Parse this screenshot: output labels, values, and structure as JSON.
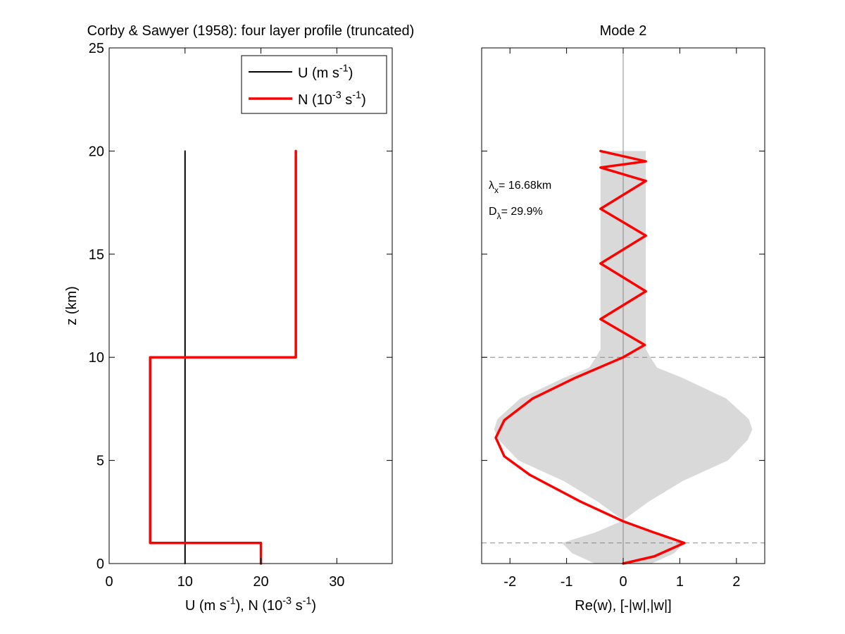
{
  "chart_data": [
    {
      "type": "line",
      "title": "Corby & Sawyer (1958): four layer profile (truncated)",
      "xlabel": "U (m s⁻¹), N (10⁻³ s⁻¹)",
      "ylabel": "z (km)",
      "xlim": [
        0,
        37.3
      ],
      "ylim": [
        0,
        25
      ],
      "xticks": [
        0,
        10,
        20,
        30
      ],
      "yticks": [
        0,
        5,
        10,
        15,
        20,
        25
      ],
      "grid": false,
      "legend_position": "top-right",
      "legend": [
        "U (m s⁻¹)",
        "N (10⁻³ s⁻¹)"
      ],
      "series": [
        {
          "name": "U (m s⁻¹)",
          "color": "#000000",
          "x": [
            10,
            10
          ],
          "y": [
            0,
            20
          ]
        },
        {
          "name": "N (10⁻³ s⁻¹)",
          "color": "#ff0000",
          "x": [
            20,
            20,
            5.4,
            5.4,
            24.6,
            24.6
          ],
          "y": [
            0,
            1,
            1,
            10,
            10,
            20
          ]
        }
      ]
    },
    {
      "type": "line",
      "title": "Mode 2",
      "xlabel": "Re(w), [-|w|,|w|]",
      "ylabel": "",
      "xlim": [
        -2.5,
        2.5
      ],
      "ylim": [
        0,
        25
      ],
      "xticks": [
        -2,
        -1,
        0,
        1,
        2
      ],
      "yticks": [
        0,
        5,
        10,
        15,
        20,
        25
      ],
      "show_yticklabels": false,
      "grid": false,
      "annotations": [
        {
          "base": "λ",
          "sub": "x",
          "text": "= 16.68km"
        },
        {
          "base": "D",
          "sub": "λ",
          "text": "= 29.9%"
        }
      ],
      "reference_lines": {
        "vertical_x": 0,
        "horizontal_dashed_y": [
          1,
          10
        ]
      },
      "envelope": {
        "color": "#d9d9d9",
        "z": [
          0,
          0.5,
          1,
          1.5,
          2,
          2.1,
          3,
          4,
          5,
          6,
          6.5,
          7,
          8,
          9,
          9.5,
          10,
          10.4,
          12,
          15,
          18,
          20
        ],
        "abs_w": [
          0.5,
          0.9,
          1.08,
          0.5,
          0.08,
          0.0,
          0.45,
          1.05,
          1.85,
          2.2,
          2.28,
          2.22,
          1.82,
          1.05,
          0.6,
          0.48,
          0.4,
          0.4,
          0.4,
          0.4,
          0.4
        ]
      },
      "series": [
        {
          "name": "Re(w)",
          "color": "#ff0000",
          "x": [
            0.0,
            0.55,
            1.08,
            0.5,
            0.0,
            -0.75,
            -1.65,
            -2.1,
            -2.25,
            -2.1,
            -1.6,
            -0.85,
            0.0,
            0.38,
            -0.4,
            0.4,
            -0.4,
            0.4,
            -0.4,
            0.4,
            -0.4,
            0.4,
            -0.4
          ],
          "y": [
            0.0,
            0.35,
            1.0,
            1.55,
            2.05,
            3.0,
            4.3,
            5.2,
            6.1,
            6.95,
            8.0,
            9.0,
            10.0,
            10.6,
            11.85,
            13.2,
            14.55,
            15.9,
            17.2,
            18.55,
            19.2,
            19.5,
            20.0
          ]
        }
      ]
    }
  ]
}
